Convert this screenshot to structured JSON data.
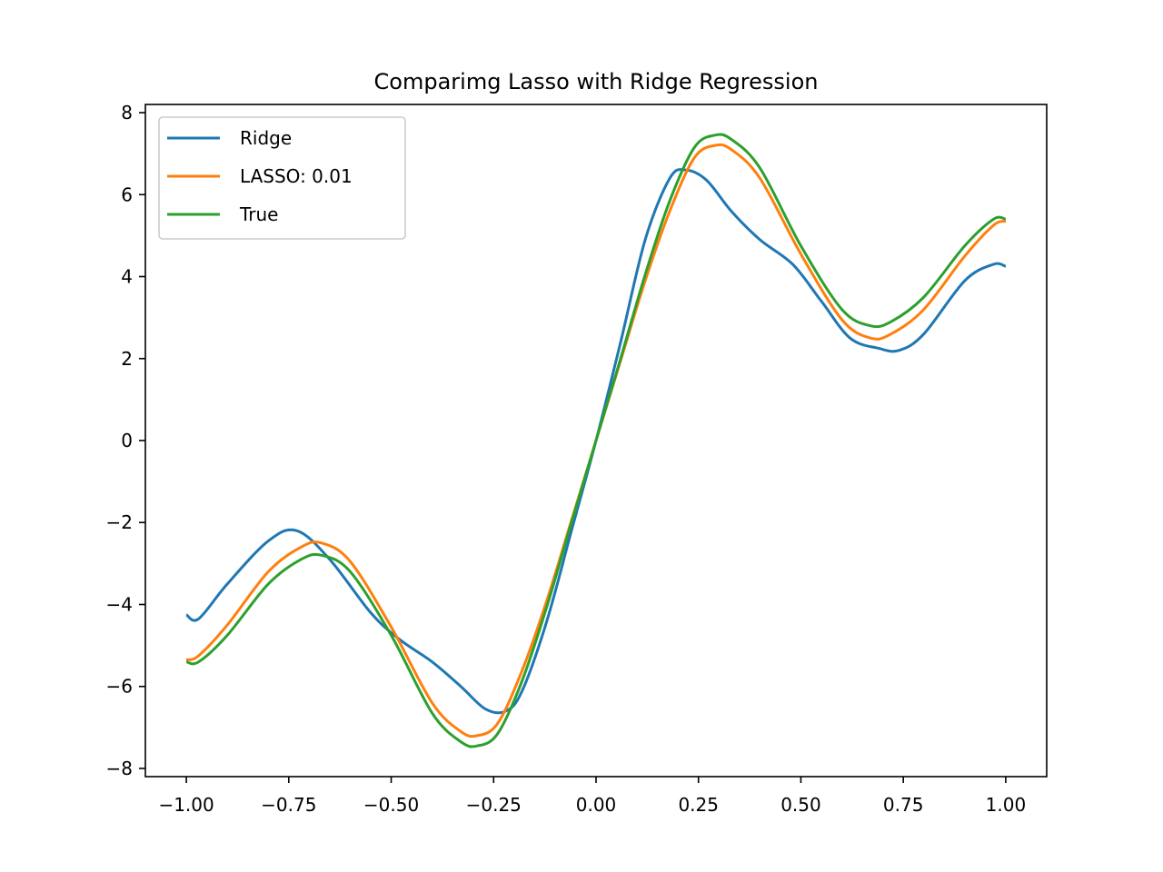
{
  "chart_data": {
    "type": "line",
    "title": "Comparimg Lasso with Ridge Regression",
    "xlabel": "",
    "ylabel": "",
    "xlim": [
      -1.1,
      1.1
    ],
    "ylim": [
      -8.2,
      8.2
    ],
    "grid": false,
    "legend_position": "upper-left",
    "x_ticks": [
      -1.0,
      -0.75,
      -0.5,
      -0.25,
      0.0,
      0.25,
      0.5,
      0.75,
      1.0
    ],
    "x_tick_labels": [
      "−1.00",
      "−0.75",
      "−0.50",
      "−0.25",
      "0.00",
      "0.25",
      "0.50",
      "0.75",
      "1.00"
    ],
    "y_ticks": [
      -8,
      -6,
      -4,
      -2,
      0,
      2,
      4,
      6,
      8
    ],
    "y_tick_labels": [
      "−8",
      "−6",
      "−4",
      "−2",
      "0",
      "2",
      "4",
      "6",
      "8"
    ],
    "series": [
      {
        "name": "Ridge",
        "color": "#1f77b4",
        "x": [
          -1.0,
          -0.97,
          -0.9,
          -0.8,
          -0.73,
          -0.65,
          -0.55,
          -0.48,
          -0.4,
          -0.33,
          -0.27,
          -0.22,
          -0.18,
          -0.12,
          -0.06,
          0.0,
          0.06,
          0.12,
          0.18,
          0.22,
          0.27,
          0.33,
          0.4,
          0.48,
          0.55,
          0.62,
          0.69,
          0.74,
          0.8,
          0.9,
          0.97,
          1.0
        ],
        "y": [
          -4.25,
          -4.35,
          -3.5,
          -2.45,
          -2.2,
          -2.9,
          -4.2,
          -4.85,
          -5.4,
          -6.0,
          -6.55,
          -6.6,
          -6.1,
          -4.4,
          -2.2,
          0.0,
          2.4,
          4.9,
          6.4,
          6.6,
          6.35,
          5.6,
          4.9,
          4.3,
          3.4,
          2.5,
          2.25,
          2.2,
          2.6,
          3.9,
          4.3,
          4.25
        ]
      },
      {
        "name": "LASSO: 0.01",
        "color": "#ff7f0e",
        "x": [
          -1.0,
          -0.97,
          -0.9,
          -0.8,
          -0.72,
          -0.67,
          -0.6,
          -0.5,
          -0.4,
          -0.33,
          -0.29,
          -0.24,
          -0.18,
          -0.12,
          -0.06,
          0.0,
          0.06,
          0.12,
          0.18,
          0.24,
          0.29,
          0.33,
          0.4,
          0.5,
          0.6,
          0.67,
          0.72,
          0.8,
          0.9,
          0.97,
          1.0
        ],
        "y": [
          -5.35,
          -5.25,
          -4.5,
          -3.2,
          -2.6,
          -2.5,
          -2.95,
          -4.55,
          -6.4,
          -7.1,
          -7.2,
          -6.9,
          -5.6,
          -3.9,
          -1.95,
          0.0,
          1.95,
          3.9,
          5.6,
          6.9,
          7.2,
          7.1,
          6.4,
          4.55,
          2.95,
          2.5,
          2.6,
          3.2,
          4.5,
          5.25,
          5.35
        ]
      },
      {
        "name": "True",
        "color": "#2ca02c",
        "x": [
          -1.0,
          -0.97,
          -0.9,
          -0.8,
          -0.72,
          -0.67,
          -0.6,
          -0.5,
          -0.4,
          -0.33,
          -0.29,
          -0.24,
          -0.18,
          -0.12,
          -0.06,
          0.0,
          0.06,
          0.12,
          0.18,
          0.24,
          0.29,
          0.33,
          0.4,
          0.5,
          0.6,
          0.67,
          0.72,
          0.8,
          0.9,
          0.97,
          1.0
        ],
        "y": [
          -5.4,
          -5.4,
          -4.75,
          -3.5,
          -2.9,
          -2.8,
          -3.2,
          -4.75,
          -6.65,
          -7.35,
          -7.45,
          -7.15,
          -5.85,
          -4.05,
          -2.0,
          0.0,
          2.0,
          4.05,
          5.85,
          7.15,
          7.45,
          7.35,
          6.65,
          4.75,
          3.2,
          2.8,
          2.9,
          3.5,
          4.75,
          5.4,
          5.4
        ]
      }
    ]
  }
}
